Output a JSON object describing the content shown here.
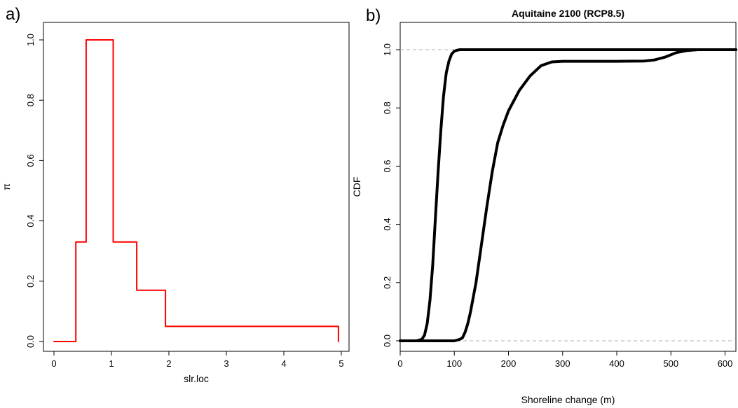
{
  "chart_data": [
    {
      "type": "line",
      "panel_label": "a)",
      "title": "",
      "xlabel": "slr.loc",
      "ylabel": "π",
      "xlim": [
        0,
        5
      ],
      "ylim": [
        0,
        1
      ],
      "x_ticks": [
        "0",
        "1",
        "2",
        "3",
        "4",
        "5"
      ],
      "y_ticks": [
        "0.0",
        "0.2",
        "0.4",
        "0.6",
        "0.8",
        "1.0"
      ],
      "grid": false,
      "series": [
        {
          "color": "#ff0000",
          "step": true,
          "x": [
            0,
            0.38,
            0.38,
            0.56,
            0.56,
            1.03,
            1.03,
            1.44,
            1.44,
            1.94,
            1.94,
            4.95,
            4.95
          ],
          "y": [
            0,
            0,
            0.33,
            0.33,
            1.0,
            1.0,
            0.33,
            0.33,
            0.17,
            0.17,
            0.05,
            0.05,
            0
          ]
        }
      ]
    },
    {
      "type": "line",
      "panel_label": "b)",
      "title": "Aquitaine 2100 (RCP8.5)",
      "xlabel": "Shoreline change (m)",
      "ylabel": "CDF",
      "xlim": [
        0,
        620
      ],
      "ylim": [
        0,
        1
      ],
      "x_ticks": [
        "0",
        "100",
        "200",
        "300",
        "400",
        "500",
        "600"
      ],
      "y_ticks": [
        "0.0",
        "0.2",
        "0.4",
        "0.6",
        "0.8",
        "1.0"
      ],
      "grid": false,
      "reference_lines_y": [
        0,
        1
      ],
      "series": [
        {
          "color": "#000000",
          "x": [
            0,
            30,
            40,
            45,
            50,
            55,
            60,
            65,
            70,
            75,
            80,
            85,
            90,
            95,
            100,
            105,
            110,
            120,
            130,
            620
          ],
          "y": [
            0,
            0,
            0.005,
            0.02,
            0.06,
            0.14,
            0.26,
            0.42,
            0.58,
            0.72,
            0.84,
            0.92,
            0.96,
            0.985,
            0.995,
            0.998,
            1.0,
            1.0,
            1.0,
            1.0
          ]
        },
        {
          "color": "#000000",
          "x": [
            0,
            100,
            110,
            115,
            120,
            125,
            130,
            140,
            150,
            160,
            170,
            180,
            190,
            200,
            220,
            240,
            260,
            280,
            300,
            400,
            450,
            470,
            490,
            510,
            530,
            550,
            620
          ],
          "y": [
            0,
            0,
            0.005,
            0.01,
            0.03,
            0.06,
            0.1,
            0.2,
            0.33,
            0.46,
            0.58,
            0.68,
            0.74,
            0.79,
            0.86,
            0.91,
            0.945,
            0.958,
            0.96,
            0.96,
            0.961,
            0.965,
            0.975,
            0.99,
            0.997,
            1.0,
            1.0
          ]
        }
      ]
    }
  ]
}
